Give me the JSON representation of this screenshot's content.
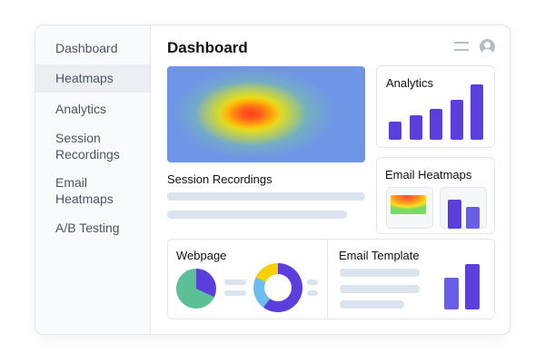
{
  "sidebar": {
    "items": [
      {
        "label": "Dashboard"
      },
      {
        "label": "Heatmaps",
        "active": true
      },
      {
        "label": "Analytics"
      },
      {
        "label": "Session Recordings"
      },
      {
        "label": "Email Heatmaps"
      },
      {
        "label": "A/B Testing"
      }
    ]
  },
  "header": {
    "title": "Dashboard",
    "menu_icon": "hamburger-icon",
    "user_icon": "user-avatar-icon"
  },
  "cards": {
    "session_recordings": "Session Recordings",
    "analytics": {
      "title": "Analytics",
      "bars": [
        0.33,
        0.44,
        0.56,
        0.72,
        1.0
      ]
    },
    "email_heatmaps": "Email Heatmaps",
    "webpage": "Webpage",
    "email_template": "Email Template"
  },
  "colors": {
    "accent": "#5b3fdc",
    "green": "#5bbf98",
    "yellow": "#f7d000",
    "lightblue": "#6cbcf0"
  }
}
